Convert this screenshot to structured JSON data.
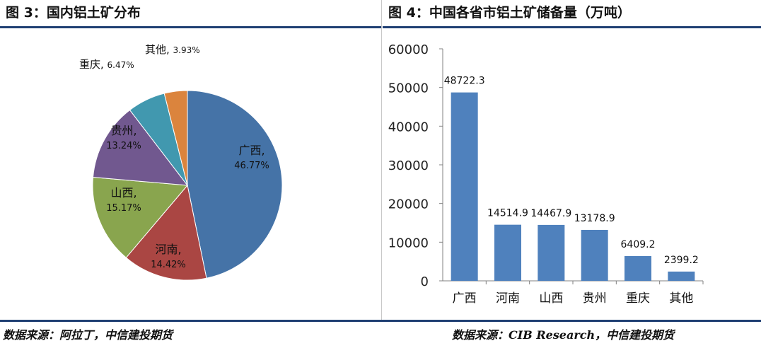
{
  "left_panel": {
    "title": "图 3：国内铝土矿分布",
    "source": "数据来源：阿拉丁，中信建投期货"
  },
  "right_panel": {
    "title": "图 4：中国各省市铝土矿储备量（万吨）",
    "source": "数据来源：CIB Research，中信建投期货"
  },
  "chart_data": [
    {
      "type": "pie",
      "title": "",
      "slices": [
        {
          "label": "广西",
          "value": 46.77,
          "display": "46.77%",
          "color": "#4573a7"
        },
        {
          "label": "河南",
          "value": 14.42,
          "display": "14.42%",
          "color": "#aa4643"
        },
        {
          "label": "山西",
          "value": 15.17,
          "display": "15.17%",
          "color": "#89a54e"
        },
        {
          "label": "贵州",
          "value": 13.24,
          "display": "13.24%",
          "color": "#71588f"
        },
        {
          "label": "重庆",
          "value": 6.47,
          "display": "6.47%",
          "color": "#4198af"
        },
        {
          "label": "其他",
          "value": 3.93,
          "display": "3.93%",
          "color": "#db843d"
        }
      ]
    },
    {
      "type": "bar",
      "title": "",
      "categories": [
        "广西",
        "河南",
        "山西",
        "贵州",
        "重庆",
        "其他"
      ],
      "values": [
        48722.3,
        14514.9,
        14467.9,
        13178.9,
        6409.2,
        2399.2
      ],
      "value_labels": [
        "48722.3",
        "14514.9",
        "14467.9",
        "13178.9",
        "6409.2",
        "2399.2"
      ],
      "ylim": [
        0,
        60000
      ],
      "yticks": [
        0,
        10000,
        20000,
        30000,
        40000,
        50000,
        60000
      ],
      "grid": false,
      "bar_color": "#4f81bd"
    }
  ]
}
